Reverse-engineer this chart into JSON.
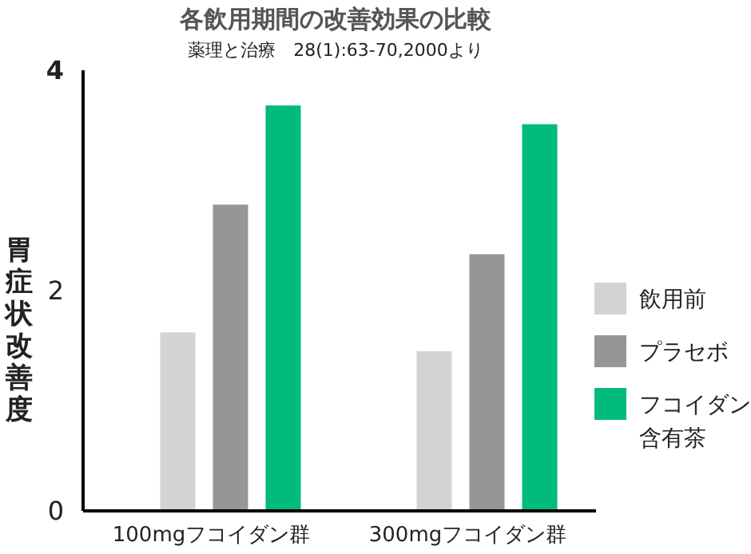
{
  "chart_data": {
    "type": "bar",
    "title": "各飲用期間の改善効果の比較",
    "subtitle": "薬理と治療　28(1):63-70,2000より",
    "ylabel": "胃症状改善度",
    "categories": [
      "100mgフコイダン群",
      "300mgフコイダン群"
    ],
    "series": [
      {
        "name": "飲用前",
        "color": "#d3d3d3",
        "values": [
          1.62,
          1.45
        ]
      },
      {
        "name": "プラセボ",
        "color": "#969696",
        "values": [
          2.78,
          2.33
        ]
      },
      {
        "name": "フコイダン含有茶",
        "color": "#00bb7a",
        "values": [
          3.68,
          3.51
        ]
      }
    ],
    "ylim": [
      0,
      4
    ],
    "yticks": [
      0,
      2,
      4
    ],
    "grid": false,
    "legend": "right"
  }
}
